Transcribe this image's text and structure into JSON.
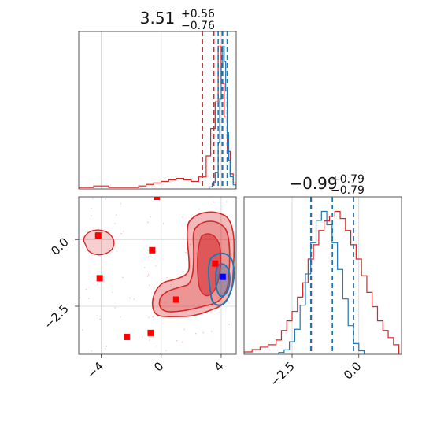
{
  "chart_data": {
    "type": "corner",
    "parameters": [
      {
        "name": "",
        "title": {
          "value": "3.51",
          "upper": "+0.56",
          "lower": "−0.76"
        },
        "range": [
          -5.5,
          5.0
        ],
        "ticks": [
          -4,
          0,
          4
        ],
        "tick_labels": [
          "−4",
          "0",
          "4"
        ]
      },
      {
        "name": "",
        "title": {
          "value": "−0.99",
          "upper": "+0.79",
          "lower": "−0.79"
        },
        "range": [
          -4.3,
          1.6
        ],
        "ticks": [
          -2.5,
          0.0
        ],
        "tick_labels": [
          "−2.5",
          "0.0"
        ]
      }
    ],
    "grid": true,
    "colors": {
      "red": "#d62728",
      "blue": "#1f77b4",
      "marker_blue": "#0000ff",
      "marker_red": "#ff0000"
    },
    "series": [
      {
        "color": "red",
        "hist_x": [
          [
            -5.5,
            1
          ],
          [
            -5.0,
            1
          ],
          [
            -4.5,
            2
          ],
          [
            -4.0,
            2
          ],
          [
            -3.5,
            1
          ],
          [
            -3.0,
            1
          ],
          [
            -2.5,
            1
          ],
          [
            -2.0,
            1
          ],
          [
            -1.5,
            2
          ],
          [
            -1.0,
            3
          ],
          [
            -0.5,
            4
          ],
          [
            0.0,
            5
          ],
          [
            0.5,
            6
          ],
          [
            1.0,
            7
          ],
          [
            1.5,
            6
          ],
          [
            2.0,
            5
          ],
          [
            2.5,
            8
          ],
          [
            3.0,
            22
          ],
          [
            3.3,
            40
          ],
          [
            3.6,
            58
          ],
          [
            3.8,
            95
          ],
          [
            4.0,
            70
          ],
          [
            4.2,
            48
          ],
          [
            4.4,
            25
          ],
          [
            4.6,
            10
          ],
          [
            4.8,
            4
          ]
        ],
        "hist_y": [
          [
            -4.3,
            1
          ],
          [
            -4.0,
            2
          ],
          [
            -3.7,
            3
          ],
          [
            -3.4,
            4
          ],
          [
            -3.1,
            6
          ],
          [
            -2.9,
            10
          ],
          [
            -2.7,
            14
          ],
          [
            -2.5,
            18
          ],
          [
            -2.3,
            24
          ],
          [
            -2.1,
            30
          ],
          [
            -1.9,
            40
          ],
          [
            -1.7,
            46
          ],
          [
            -1.5,
            52
          ],
          [
            -1.3,
            56
          ],
          [
            -1.1,
            58
          ],
          [
            -0.9,
            60
          ],
          [
            -0.7,
            57
          ],
          [
            -0.5,
            52
          ],
          [
            -0.3,
            46
          ],
          [
            -0.1,
            40
          ],
          [
            0.1,
            33
          ],
          [
            0.3,
            26
          ],
          [
            0.5,
            20
          ],
          [
            0.7,
            14
          ],
          [
            0.9,
            10
          ],
          [
            1.1,
            7
          ],
          [
            1.3,
            4
          ]
        ],
        "quantiles_x": [
          2.75,
          3.51,
          4.07
        ],
        "quantiles_y": [
          -1.78,
          -0.99,
          -0.2
        ]
      },
      {
        "color": "blue",
        "hist_x": [
          [
            3.2,
            2
          ],
          [
            3.4,
            6
          ],
          [
            3.6,
            16
          ],
          [
            3.8,
            45
          ],
          [
            3.9,
            88
          ],
          [
            4.0,
            120
          ],
          [
            4.1,
            140
          ],
          [
            4.2,
            125
          ],
          [
            4.3,
            96
          ],
          [
            4.4,
            55
          ],
          [
            4.5,
            28
          ],
          [
            4.6,
            12
          ],
          [
            4.8,
            4
          ]
        ],
        "hist_y": [
          [
            -3.0,
            2
          ],
          [
            -2.8,
            5
          ],
          [
            -2.6,
            14
          ],
          [
            -2.4,
            28
          ],
          [
            -2.2,
            55
          ],
          [
            -2.0,
            90
          ],
          [
            -1.8,
            125
          ],
          [
            -1.6,
            150
          ],
          [
            -1.4,
            160
          ],
          [
            -1.2,
            145
          ],
          [
            -1.0,
            125
          ],
          [
            -0.8,
            95
          ],
          [
            -0.6,
            62
          ],
          [
            -0.4,
            32
          ],
          [
            -0.2,
            12
          ],
          [
            0.0,
            4
          ]
        ],
        "quantiles_x": [
          3.8,
          4.1,
          4.4
        ],
        "quantiles_y": [
          -1.8,
          -0.99,
          -0.2
        ]
      }
    ],
    "markers": [
      {
        "x": -0.3,
        "y": 1.6,
        "color": "red"
      },
      {
        "x": -4.2,
        "y": 0.15,
        "color": "red"
      },
      {
        "x": -0.6,
        "y": -0.4,
        "color": "red"
      },
      {
        "x": -4.1,
        "y": -1.45,
        "color": "red"
      },
      {
        "x": 1.0,
        "y": -2.25,
        "color": "red"
      },
      {
        "x": -2.3,
        "y": -3.65,
        "color": "red"
      },
      {
        "x": -0.7,
        "y": -3.5,
        "color": "red"
      },
      {
        "x": 3.6,
        "y": -0.9,
        "color": "red"
      },
      {
        "x": 4.1,
        "y": -1.4,
        "color": "blue"
      }
    ]
  }
}
